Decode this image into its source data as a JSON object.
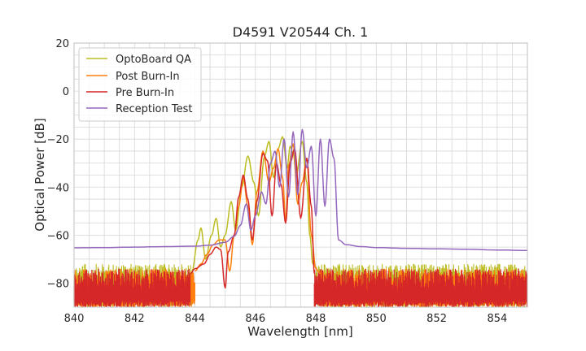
{
  "chart_data": {
    "type": "line",
    "title": "D4591 V20544 Ch. 1",
    "xlabel": "Wavelength [nm]",
    "ylabel": "Optical Power [dB]",
    "xlim": [
      840,
      855
    ],
    "ylim": [
      -90,
      20
    ],
    "xticks": [
      840,
      842,
      844,
      846,
      848,
      850,
      852,
      854
    ],
    "yticks": [
      20,
      0,
      -20,
      -40,
      -60,
      -80
    ],
    "xtick_labels": [
      "840",
      "842",
      "844",
      "846",
      "848",
      "850",
      "852",
      "854"
    ],
    "ytick_labels": [
      "20",
      "0",
      "−20",
      "−40",
      "−60",
      "−80"
    ],
    "grid": true,
    "legend_position": "top-left",
    "series": [
      {
        "name": "OptoBoard QA",
        "color": "#bcbd22",
        "noise_floor": {
          "x_ranges": [
            [
              840,
              843.9
            ],
            [
              848.0,
              855
            ]
          ],
          "y_range": [
            -90,
            -72
          ]
        },
        "points": [
          [
            843.9,
            -75
          ],
          [
            844.1,
            -62
          ],
          [
            844.2,
            -57
          ],
          [
            844.35,
            -70
          ],
          [
            844.55,
            -60
          ],
          [
            844.7,
            -53
          ],
          [
            844.85,
            -65
          ],
          [
            845.0,
            -60
          ],
          [
            845.2,
            -46
          ],
          [
            845.35,
            -58
          ],
          [
            845.55,
            -40
          ],
          [
            845.75,
            -27
          ],
          [
            845.95,
            -38
          ],
          [
            846.1,
            -52
          ],
          [
            846.3,
            -27
          ],
          [
            846.45,
            -21
          ],
          [
            846.6,
            -36
          ],
          [
            846.75,
            -24
          ],
          [
            846.9,
            -19
          ],
          [
            847.05,
            -32
          ],
          [
            847.15,
            -23
          ],
          [
            847.25,
            -26
          ],
          [
            847.35,
            -35
          ],
          [
            847.55,
            -21
          ],
          [
            847.7,
            -38
          ],
          [
            847.8,
            -60
          ],
          [
            847.9,
            -72
          ],
          [
            848.0,
            -73
          ]
        ]
      },
      {
        "name": "Post Burn-In",
        "color": "#ff7f0e",
        "noise_floor": {
          "x_ranges": [
            [
              840,
              844.0
            ],
            [
              848.15,
              855
            ]
          ],
          "y_range": [
            -90,
            -74
          ]
        },
        "points": [
          [
            844.0,
            -75
          ],
          [
            844.2,
            -72
          ],
          [
            844.4,
            -68
          ],
          [
            844.6,
            -64
          ],
          [
            844.8,
            -62
          ],
          [
            845.0,
            -62
          ],
          [
            845.15,
            -75
          ],
          [
            845.3,
            -60
          ],
          [
            845.45,
            -48
          ],
          [
            845.6,
            -36
          ],
          [
            845.75,
            -48
          ],
          [
            845.9,
            -64
          ],
          [
            846.05,
            -42
          ],
          [
            846.25,
            -25
          ],
          [
            846.45,
            -38
          ],
          [
            846.6,
            -32
          ],
          [
            846.75,
            -24
          ],
          [
            846.9,
            -36
          ],
          [
            847.0,
            -54
          ],
          [
            847.1,
            -31
          ],
          [
            847.25,
            -22
          ],
          [
            847.4,
            -47
          ],
          [
            847.55,
            -38
          ],
          [
            847.7,
            -28
          ],
          [
            847.85,
            -60
          ],
          [
            848.0,
            -74
          ],
          [
            848.15,
            -76
          ]
        ]
      },
      {
        "name": "Pre Burn-In",
        "color": "#d62728",
        "noise_floor": {
          "x_ranges": [
            [
              840,
              843.85
            ],
            [
              847.95,
              855
            ]
          ],
          "y_range": [
            -90,
            -74
          ]
        },
        "points": [
          [
            843.85,
            -76
          ],
          [
            844.0,
            -74
          ],
          [
            844.3,
            -72
          ],
          [
            844.5,
            -68
          ],
          [
            844.7,
            -65
          ],
          [
            844.85,
            -66
          ],
          [
            845.0,
            -82
          ],
          [
            845.1,
            -67
          ],
          [
            845.3,
            -60
          ],
          [
            845.45,
            -44
          ],
          [
            845.6,
            -35
          ],
          [
            845.75,
            -45
          ],
          [
            845.9,
            -62
          ],
          [
            846.05,
            -46
          ],
          [
            846.25,
            -26
          ],
          [
            846.4,
            -29
          ],
          [
            846.55,
            -52
          ],
          [
            846.7,
            -30
          ],
          [
            846.85,
            -39
          ],
          [
            847.0,
            -55
          ],
          [
            847.15,
            -30
          ],
          [
            847.3,
            -24
          ],
          [
            847.5,
            -53
          ],
          [
            847.7,
            -28
          ],
          [
            847.85,
            -48
          ],
          [
            847.95,
            -76
          ]
        ]
      },
      {
        "name": "Reception Test",
        "color": "#9467bd",
        "points": [
          [
            840,
            -65.3
          ],
          [
            841,
            -65.2
          ],
          [
            842,
            -65.0
          ],
          [
            843,
            -64.8
          ],
          [
            844,
            -64.6
          ],
          [
            844.5,
            -64.2
          ],
          [
            845.0,
            -63.0
          ],
          [
            845.3,
            -60.5
          ],
          [
            845.5,
            -56.0
          ],
          [
            845.7,
            -47.0
          ],
          [
            845.85,
            -58.0
          ],
          [
            846.0,
            -52.0
          ],
          [
            846.2,
            -42.0
          ],
          [
            846.35,
            -47.0
          ],
          [
            846.5,
            -30.0
          ],
          [
            846.65,
            -25.0
          ],
          [
            846.8,
            -40.0
          ],
          [
            846.95,
            -20.0
          ],
          [
            847.1,
            -44.0
          ],
          [
            847.25,
            -17.0
          ],
          [
            847.4,
            -43.0
          ],
          [
            847.55,
            -16.0
          ],
          [
            847.7,
            -32.0
          ],
          [
            847.85,
            -23.0
          ],
          [
            848.0,
            -52.0
          ],
          [
            848.15,
            -20.0
          ],
          [
            848.3,
            -48.0
          ],
          [
            848.45,
            -20.0
          ],
          [
            848.6,
            -28.0
          ],
          [
            848.75,
            -62.0
          ],
          [
            849.0,
            -64.0
          ],
          [
            849.5,
            -64.8
          ],
          [
            850,
            -65.2
          ],
          [
            851,
            -65.5
          ],
          [
            852,
            -65.7
          ],
          [
            853,
            -65.9
          ],
          [
            854,
            -66.2
          ],
          [
            855,
            -66.4
          ]
        ]
      }
    ]
  }
}
